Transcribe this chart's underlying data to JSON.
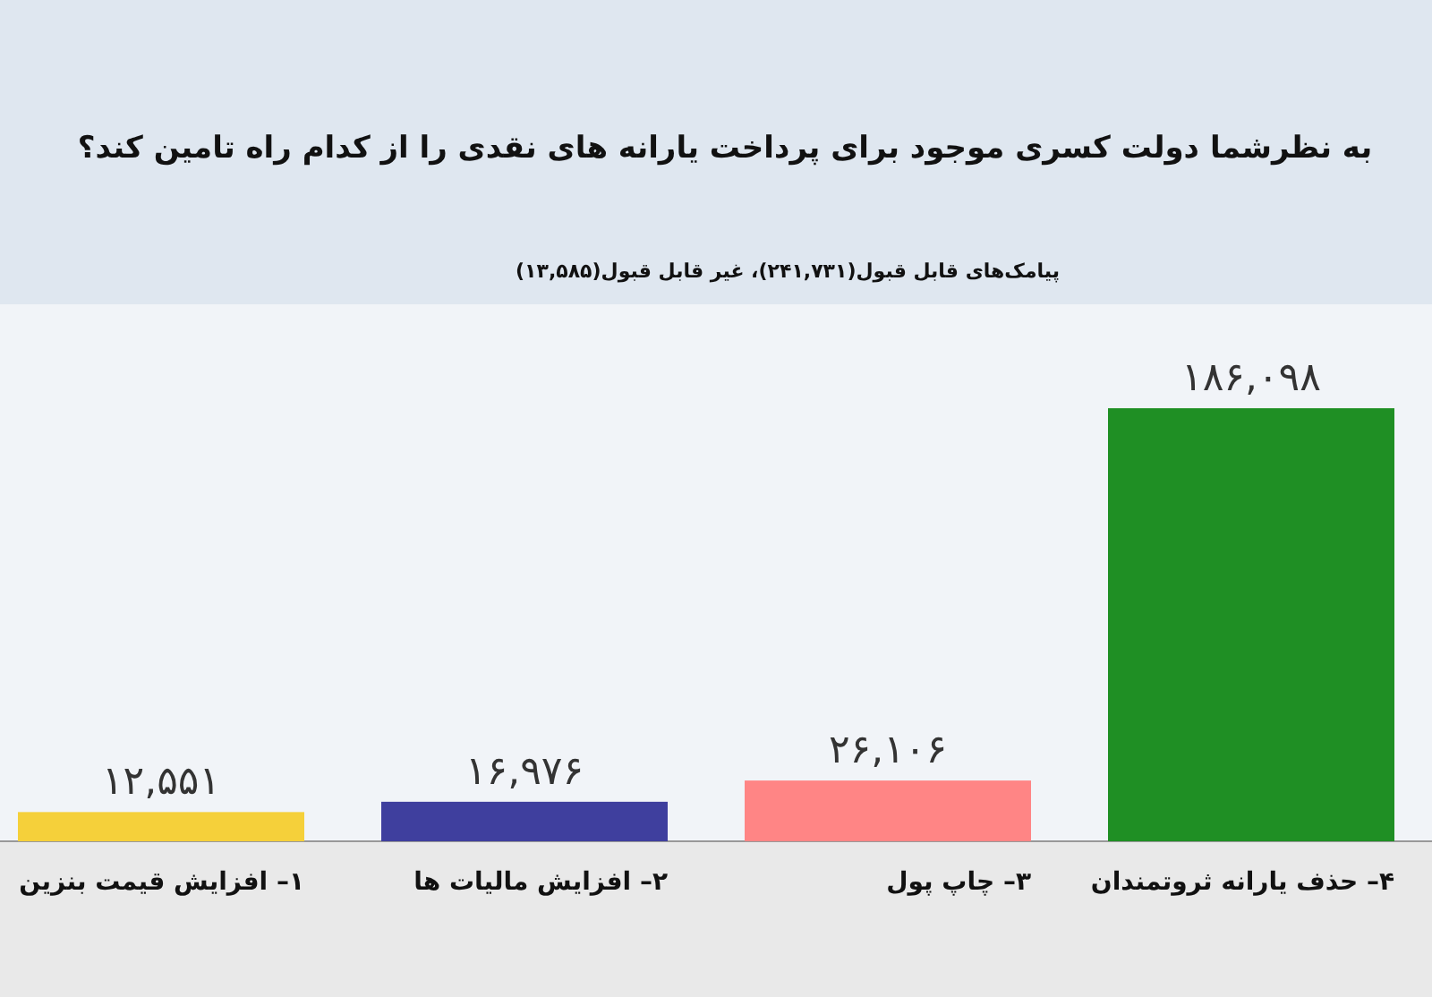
{
  "chart_data": {
    "type": "bar",
    "title": "به نظرشما دولت کسری موجود برای پرداخت یارانه های نقدی را از کدام راه تامین کند؟",
    "subtitle": "پیامک‌های قابل قبول(۲۴۱,۷۳۱)، غیر قابل قبول(۱۳,۵۸۵)",
    "categories": [
      "۱– افزایش قیمت بنزین",
      "۲– افزایش مالیات ها",
      "۳– چاپ پول",
      "۴– حذف یارانه ثروتمندان"
    ],
    "values": [
      12551,
      16976,
      26106,
      186098
    ],
    "colors": [
      "#f5d03a",
      "#3f3f9e",
      "#ff8585",
      "#1f8f24"
    ],
    "value_labels": [
      "۱۲,۵۵۱",
      "۱۶,۹۷۶",
      "۲۶,۱۰۶",
      "۱۸۶,۰۹۸"
    ]
  }
}
